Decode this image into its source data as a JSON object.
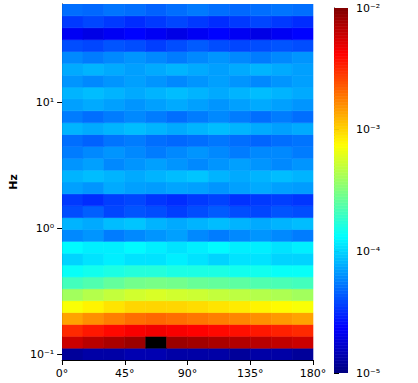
{
  "chart_data": {
    "type": "heatmap",
    "y_label": "Hz",
    "log": "y",
    "xlim": [
      0,
      180
    ],
    "xticks": [
      {
        "value": 0,
        "label": "0°"
      },
      {
        "value": 45,
        "label": "45°"
      },
      {
        "value": 90,
        "label": "90°"
      },
      {
        "value": 135,
        "label": "135°"
      },
      {
        "value": 180,
        "label": "180°"
      }
    ],
    "ylim": [
      0.09,
      60
    ],
    "yticks": [
      {
        "value": 0.1,
        "label": "10⁻¹"
      },
      {
        "value": 1,
        "label": "10⁰"
      },
      {
        "value": 10,
        "label": "10¹"
      }
    ],
    "x_edges": [
      0,
      15,
      30,
      45,
      60,
      75,
      90,
      105,
      120,
      135,
      150,
      165,
      180
    ],
    "y_edges": [
      0.09,
      0.1117,
      0.1388,
      0.1724,
      0.2141,
      0.266,
      0.3304,
      0.4104,
      0.5098,
      0.6332,
      0.786,
      0.976,
      1.213,
      1.506,
      1.871,
      2.324,
      2.886,
      3.584,
      4.452,
      5.529,
      6.867,
      8.53,
      10.59,
      13.16,
      16.34,
      20.3,
      25.21,
      31.31,
      38.89,
      48.31,
      60
    ],
    "cells": [
      [
        1.2e-05,
        1.3e-05,
        1.3e-05,
        1.4e-05,
        1.4e-05,
        1.3e-05,
        1.3e-05,
        1.3e-05,
        1.2e-05,
        1.3e-05,
        1.3e-05,
        1.2e-05
      ],
      [
        0.006,
        0.0068,
        0.0075,
        0.0083,
        0.02,
        0.0083,
        0.0079,
        0.0075,
        0.0071,
        0.0068,
        0.0064,
        0.006
      ],
      [
        0.0032,
        0.0036,
        0.004,
        0.0044,
        0.0046,
        0.0044,
        0.0042,
        0.004,
        0.0038,
        0.0036,
        0.0034,
        0.0032
      ],
      [
        0.0014,
        0.0016,
        0.0018,
        0.002,
        0.0021,
        0.002,
        0.0019,
        0.0018,
        0.0017,
        0.0016,
        0.0015,
        0.0014
      ],
      [
        0.00072,
        0.00081,
        0.0009,
        0.00099,
        0.001,
        0.00099,
        0.00095,
        0.0009,
        0.00086,
        0.00081,
        0.00077,
        0.00072
      ],
      [
        0.0004,
        0.00045,
        0.0005,
        0.00055,
        0.00058,
        0.00055,
        0.00053,
        0.0005,
        0.00048,
        0.00045,
        0.00043,
        0.0004
      ],
      [
        0.00021,
        0.00023,
        0.00026,
        0.00029,
        0.0003,
        0.00029,
        0.00027,
        0.00026,
        0.00025,
        0.00023,
        0.00022,
        0.00021
      ],
      [
        0.00014,
        0.00015,
        0.00016,
        0.00017,
        0.00017,
        0.00016,
        0.00016,
        0.00016,
        0.00015,
        0.00015,
        0.00014,
        0.00014
      ],
      [
        0.0001,
        0.00011,
        0.00012,
        0.00011,
        0.00011,
        0.00012,
        0.00011,
        0.0001,
        0.00011,
        0.00011,
        0.0001,
        0.0001
      ],
      [
        0.00013,
        0.00012,
        0.00012,
        0.00013,
        0.00012,
        0.00011,
        0.00012,
        0.00013,
        0.00012,
        0.00012,
        0.00011,
        0.00012
      ],
      [
        6e-05,
        6.5e-05,
        5.5e-05,
        6e-05,
        6.5e-05,
        7e-05,
        6e-05,
        5.5e-05,
        6e-05,
        6.5e-05,
        6e-05,
        5.5e-05
      ],
      [
        8e-05,
        7.5e-05,
        8.5e-05,
        9e-05,
        8e-05,
        7.5e-05,
        8e-05,
        8.5e-05,
        8e-05,
        7.5e-05,
        8e-05,
        8.5e-05
      ],
      [
        4e-05,
        4.5e-05,
        3.8e-05,
        4.2e-05,
        4e-05,
        3.6e-05,
        4e-05,
        4.4e-05,
        4e-05,
        3.8e-05,
        4.2e-05,
        4e-05
      ],
      [
        3.5e-05,
        3.2e-05,
        3.6e-05,
        3.8e-05,
        3.4e-05,
        3.2e-05,
        3.5e-05,
        3.7e-05,
        3.3e-05,
        3.5e-05,
        3.6e-05,
        3.4e-05
      ],
      [
        7e-05,
        6.5e-05,
        7.5e-05,
        7e-05,
        6.8e-05,
        7.2e-05,
        7e-05,
        6.5e-05,
        7e-05,
        7.5e-05,
        7e-05,
        6.8e-05
      ],
      [
        8e-05,
        8.5e-05,
        8e-05,
        7.5e-05,
        8e-05,
        8.5e-05,
        9e-05,
        8e-05,
        7.5e-05,
        8e-05,
        8.5e-05,
        8e-05
      ],
      [
        6.5e-05,
        7e-05,
        6e-05,
        6.5e-05,
        7e-05,
        6.5e-05,
        6e-05,
        6.5e-05,
        7e-05,
        6.5e-05,
        6e-05,
        6.5e-05
      ],
      [
        5.5e-05,
        6e-05,
        6.5e-05,
        6e-05,
        5.5e-05,
        6e-05,
        6.5e-05,
        6e-05,
        5.5e-05,
        6e-05,
        6e-05,
        5.5e-05
      ],
      [
        5e-05,
        4.6e-05,
        5.2e-05,
        5.5e-05,
        5e-05,
        4.8e-05,
        5e-05,
        5.3e-05,
        5e-05,
        4.7e-05,
        5e-05,
        5.2e-05
      ],
      [
        8e-05,
        7.5e-05,
        8e-05,
        8.5e-05,
        8e-05,
        7.5e-05,
        8e-05,
        8.5e-05,
        8e-05,
        7.5e-05,
        7e-05,
        7.5e-05
      ],
      [
        5.5e-05,
        5e-05,
        5.5e-05,
        6e-05,
        5.5e-05,
        5e-05,
        5.5e-05,
        6e-05,
        5.5e-05,
        5e-05,
        5.5e-05,
        5e-05
      ],
      [
        7e-05,
        7.5e-05,
        7e-05,
        6.5e-05,
        7e-05,
        7.5e-05,
        7e-05,
        6.5e-05,
        7e-05,
        7.5e-05,
        7e-05,
        6.5e-05
      ],
      [
        8e-05,
        8.5e-05,
        8e-05,
        7.5e-05,
        8e-05,
        8.5e-05,
        8e-05,
        7.5e-05,
        8e-05,
        8.5e-05,
        8e-05,
        7.5e-05
      ],
      [
        6.5e-05,
        6e-05,
        6.5e-05,
        7e-05,
        6.5e-05,
        6e-05,
        6.5e-05,
        7e-05,
        6.5e-05,
        6e-05,
        6.5e-05,
        7e-05
      ],
      [
        7.5e-05,
        8e-05,
        7.5e-05,
        7e-05,
        7.5e-05,
        8e-05,
        7.5e-05,
        7e-05,
        7.5e-05,
        8e-05,
        7.5e-05,
        7e-05
      ],
      [
        6e-05,
        5.5e-05,
        6e-05,
        6.5e-05,
        6e-05,
        5.5e-05,
        6e-05,
        6.5e-05,
        6e-05,
        5.5e-05,
        6e-05,
        6.5e-05
      ],
      [
        4e-05,
        3.8e-05,
        4.2e-05,
        4e-05,
        3.6e-05,
        4e-05,
        4.4e-05,
        4e-05,
        3.8e-05,
        4e-05,
        4.2e-05,
        4e-05
      ],
      [
        2.2e-05,
        2e-05,
        2.2e-05,
        2.4e-05,
        2.2e-05,
        2e-05,
        2.2e-05,
        2.4e-05,
        2.2e-05,
        2e-05,
        2.2e-05,
        2.4e-05
      ],
      [
        3.5e-05,
        3.8e-05,
        3.5e-05,
        3.2e-05,
        3.5e-05,
        3.8e-05,
        3.5e-05,
        3.2e-05,
        3.5e-05,
        3.8e-05,
        3.5e-05,
        3.2e-05
      ],
      [
        5e-05,
        4.8e-05,
        5.2e-05,
        5e-05,
        4.6e-05,
        5e-05,
        5.4e-05,
        5e-05,
        4.8e-05,
        5e-05,
        5.2e-05,
        5e-05
      ]
    ],
    "colorbar_range": [
      1e-05,
      0.01
    ],
    "colorbar_ticks": [
      {
        "value": 1e-05,
        "label": "10⁻⁵"
      },
      {
        "value": 0.0001,
        "label": "10⁻⁴"
      },
      {
        "value": 0.001,
        "label": "10⁻³"
      },
      {
        "value": 0.01,
        "label": "10⁻²"
      }
    ]
  }
}
